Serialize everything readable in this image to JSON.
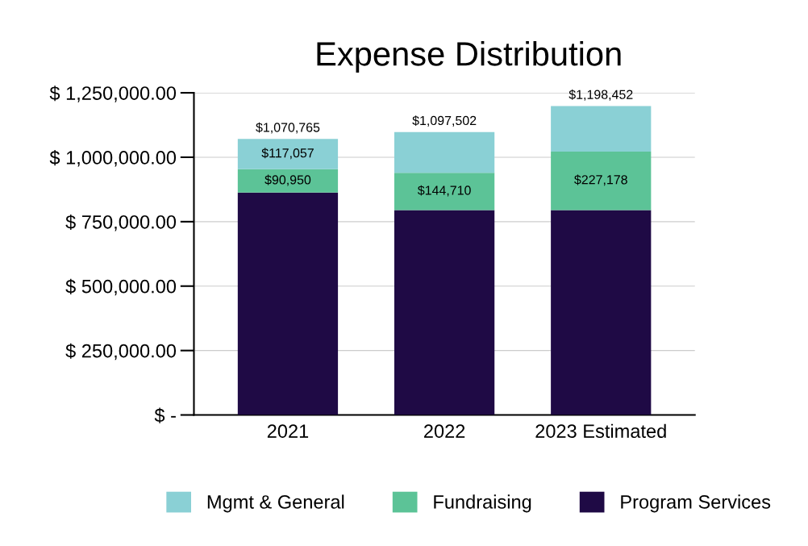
{
  "chart_data": {
    "type": "bar",
    "title": "Expense Distribution",
    "categories": [
      "2021",
      "2022",
      "2023 Estimated"
    ],
    "stacked": true,
    "series": [
      {
        "name": "Program Services",
        "color": "#1f0a45",
        "values": [
          862758,
          795000,
          795000
        ]
      },
      {
        "name": "Fundraising",
        "color": "#5cc397",
        "values": [
          90950,
          144710,
          227178
        ],
        "value_labels": [
          "$90,950",
          "$144,710",
          "$227,178"
        ]
      },
      {
        "name": "Mgmt & General",
        "color": "#8ad0d5",
        "values": [
          117057,
          157792,
          176274
        ],
        "value_labels": [
          "$117,057",
          null,
          null
        ]
      }
    ],
    "totals": [
      "$1,070,765",
      "$1,097,502",
      "$1,198,452"
    ],
    "ylim": [
      0,
      1250000
    ],
    "yticks": [
      {
        "value": 0,
        "label": "$ -"
      },
      {
        "value": 250000,
        "label": "$ 250,000.00"
      },
      {
        "value": 500000,
        "label": "$ 500,000.00"
      },
      {
        "value": 750000,
        "label": "$ 750,000.00"
      },
      {
        "value": 1000000,
        "label": "$ 1,000,000.00"
      },
      {
        "value": 1250000,
        "label": "$ 1,250,000.00"
      }
    ],
    "grid": "y",
    "legend": "bottom"
  }
}
